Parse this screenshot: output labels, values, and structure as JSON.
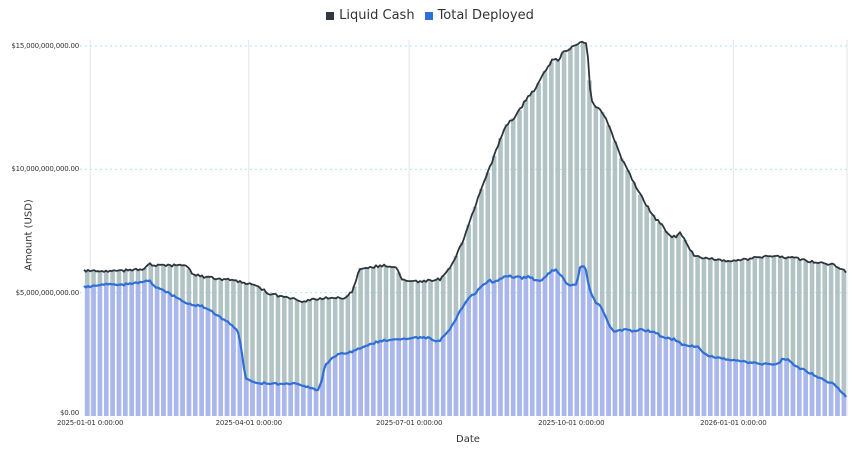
{
  "page": {
    "background": "#ffffff"
  },
  "legend": {
    "items": [
      {
        "label": "Liquid Cash",
        "color": "#31383f"
      },
      {
        "label": "Total Deployed",
        "color": "#2f6fd6"
      }
    ]
  },
  "axes": {
    "x": {
      "title": "Date",
      "tick_labels": [
        "2025-01-01 0:00:00",
        "2025-04-01 0:00:00",
        "2025-07-01 0:00:00",
        "2025-10-01 0:00:00",
        "2026-01-01 0:00:00"
      ],
      "tick_days": [
        0,
        90,
        181,
        273,
        365
      ]
    },
    "y": {
      "title": "Amount (USD)",
      "tick_labels": [
        "$0.00",
        "$5,000,000,000.00",
        "$10,000,000,000.00",
        "$15,000,000,000.00"
      ],
      "tick_values_billions": [
        0,
        5,
        10,
        15
      ]
    }
  },
  "chart_data": {
    "type": "area",
    "title": "",
    "xlabel": "Date",
    "ylabel": "Amount (USD)",
    "x_unit": "days since 2025-01-01",
    "x_range_days": [
      -3.5,
      429.5
    ],
    "ylim_usd_billions": [
      0,
      15.25
    ],
    "x_tick_dates": [
      "2025-01-01",
      "2025-04-01",
      "2025-07-01",
      "2025-10-01",
      "2026-01-01"
    ],
    "y_ticks_usd": [
      0,
      5000000000,
      10000000000,
      15000000000
    ],
    "grid": {
      "horizontal_dashed_color": "#a9eaee",
      "vertical_color": "#e4e4e4"
    },
    "value_unit": "USD billions",
    "series": [
      {
        "name": "Liquid Cash",
        "line_color": "#2e353c",
        "fill_color": "#a3b8ba",
        "fill_opacity": 0.85,
        "points": [
          [
            0,
            5.9
          ],
          [
            7,
            5.85
          ],
          [
            19,
            5.9
          ],
          [
            30,
            5.95
          ],
          [
            33,
            6.15
          ],
          [
            41,
            6.1
          ],
          [
            50,
            6.1
          ],
          [
            55,
            6.05
          ],
          [
            58,
            5.75
          ],
          [
            64,
            5.65
          ],
          [
            69,
            5.6
          ],
          [
            81,
            5.5
          ],
          [
            89,
            5.35
          ],
          [
            95,
            5.3
          ],
          [
            101,
            4.95
          ],
          [
            109,
            4.85
          ],
          [
            120,
            4.65
          ],
          [
            129,
            4.75
          ],
          [
            137,
            4.8
          ],
          [
            143,
            4.75
          ],
          [
            149,
            5.05
          ],
          [
            153,
            6.0
          ],
          [
            160,
            6.05
          ],
          [
            168,
            6.1
          ],
          [
            174,
            6.0
          ],
          [
            177,
            5.5
          ],
          [
            185,
            5.45
          ],
          [
            194,
            5.5
          ],
          [
            199,
            5.55
          ],
          [
            205,
            6.1
          ],
          [
            211,
            7.0
          ],
          [
            216,
            8.0
          ],
          [
            222,
            9.2
          ],
          [
            228,
            10.3
          ],
          [
            233,
            11.3
          ],
          [
            236,
            11.8
          ],
          [
            242,
            12.2
          ],
          [
            247,
            12.8
          ],
          [
            253,
            13.3
          ],
          [
            259,
            14.1
          ],
          [
            263,
            14.5
          ],
          [
            266,
            14.4
          ],
          [
            268,
            14.7
          ],
          [
            272,
            14.9
          ],
          [
            274,
            15.0
          ],
          [
            277,
            15.1
          ],
          [
            280,
            15.15
          ],
          [
            282,
            15.1
          ],
          [
            284,
            12.9
          ],
          [
            286,
            12.6
          ],
          [
            290,
            12.4
          ],
          [
            293,
            12.0
          ],
          [
            297,
            11.3
          ],
          [
            301,
            10.5
          ],
          [
            307,
            9.7
          ],
          [
            312,
            9.0
          ],
          [
            317,
            8.4
          ],
          [
            321,
            8.0
          ],
          [
            325,
            7.7
          ],
          [
            328,
            7.35
          ],
          [
            332,
            7.25
          ],
          [
            335,
            7.45
          ],
          [
            337,
            7.2
          ],
          [
            341,
            6.7
          ],
          [
            343,
            6.5
          ],
          [
            349,
            6.4
          ],
          [
            355,
            6.35
          ],
          [
            360,
            6.3
          ],
          [
            366,
            6.3
          ],
          [
            372,
            6.35
          ],
          [
            377,
            6.4
          ],
          [
            383,
            6.45
          ],
          [
            389,
            6.5
          ],
          [
            394,
            6.45
          ],
          [
            400,
            6.4
          ],
          [
            406,
            6.3
          ],
          [
            411,
            6.25
          ],
          [
            417,
            6.2
          ],
          [
            423,
            6.1
          ],
          [
            429,
            5.85
          ]
        ]
      },
      {
        "name": "Total Deployed",
        "line_color": "#2f6fd6",
        "fill_color": "#a9b6ef",
        "fill_opacity": 0.95,
        "points": [
          [
            0,
            5.25
          ],
          [
            5,
            5.3
          ],
          [
            10,
            5.35
          ],
          [
            16,
            5.3
          ],
          [
            21,
            5.35
          ],
          [
            27,
            5.4
          ],
          [
            32,
            5.5
          ],
          [
            34,
            5.45
          ],
          [
            38,
            5.2
          ],
          [
            44,
            5.0
          ],
          [
            50,
            4.75
          ],
          [
            54,
            4.55
          ],
          [
            58,
            4.5
          ],
          [
            64,
            4.45
          ],
          [
            67,
            4.3
          ],
          [
            71,
            4.15
          ],
          [
            75,
            3.95
          ],
          [
            80,
            3.7
          ],
          [
            84,
            3.4
          ],
          [
            86,
            2.6
          ],
          [
            88,
            1.55
          ],
          [
            91,
            1.4
          ],
          [
            95,
            1.35
          ],
          [
            103,
            1.3
          ],
          [
            118,
            1.3
          ],
          [
            123,
            1.2
          ],
          [
            126,
            1.1
          ],
          [
            129,
            1.05
          ],
          [
            131,
            1.3
          ],
          [
            133,
            2.0
          ],
          [
            137,
            2.35
          ],
          [
            143,
            2.55
          ],
          [
            149,
            2.6
          ],
          [
            154,
            2.8
          ],
          [
            160,
            2.95
          ],
          [
            166,
            3.05
          ],
          [
            171,
            3.1
          ],
          [
            177,
            3.1
          ],
          [
            182,
            3.15
          ],
          [
            188,
            3.2
          ],
          [
            193,
            3.15
          ],
          [
            197,
            3.0
          ],
          [
            199,
            3.1
          ],
          [
            204,
            3.5
          ],
          [
            208,
            4.0
          ],
          [
            212,
            4.5
          ],
          [
            215,
            4.8
          ],
          [
            219,
            5.0
          ],
          [
            222,
            5.25
          ],
          [
            227,
            5.5
          ],
          [
            229,
            5.4
          ],
          [
            232,
            5.55
          ],
          [
            236,
            5.7
          ],
          [
            240,
            5.65
          ],
          [
            245,
            5.6
          ],
          [
            249,
            5.65
          ],
          [
            253,
            5.5
          ],
          [
            256,
            5.45
          ],
          [
            260,
            5.8
          ],
          [
            264,
            5.95
          ],
          [
            267,
            5.7
          ],
          [
            270,
            5.4
          ],
          [
            273,
            5.3
          ],
          [
            276,
            5.35
          ],
          [
            278,
            6.0
          ],
          [
            281,
            6.1
          ],
          [
            282,
            5.6
          ],
          [
            284,
            5.0
          ],
          [
            287,
            4.6
          ],
          [
            290,
            4.45
          ],
          [
            292,
            4.1
          ],
          [
            295,
            3.6
          ],
          [
            298,
            3.4
          ],
          [
            300,
            3.45
          ],
          [
            304,
            3.5
          ],
          [
            308,
            3.45
          ],
          [
            312,
            3.5
          ],
          [
            317,
            3.45
          ],
          [
            321,
            3.4
          ],
          [
            324,
            3.2
          ],
          [
            328,
            3.15
          ],
          [
            332,
            3.1
          ],
          [
            336,
            2.9
          ],
          [
            341,
            2.85
          ],
          [
            345,
            2.8
          ],
          [
            350,
            2.45
          ],
          [
            353,
            2.4
          ],
          [
            358,
            2.35
          ],
          [
            362,
            2.3
          ],
          [
            367,
            2.25
          ],
          [
            371,
            2.2
          ],
          [
            376,
            2.15
          ],
          [
            380,
            2.1
          ],
          [
            389,
            2.1
          ],
          [
            391,
            2.15
          ],
          [
            393,
            2.35
          ],
          [
            396,
            2.3
          ],
          [
            400,
            2.0
          ],
          [
            404,
            1.9
          ],
          [
            410,
            1.7
          ],
          [
            414,
            1.55
          ],
          [
            420,
            1.35
          ],
          [
            424,
            1.2
          ],
          [
            427,
            0.9
          ],
          [
            429,
            0.8
          ]
        ]
      }
    ]
  }
}
